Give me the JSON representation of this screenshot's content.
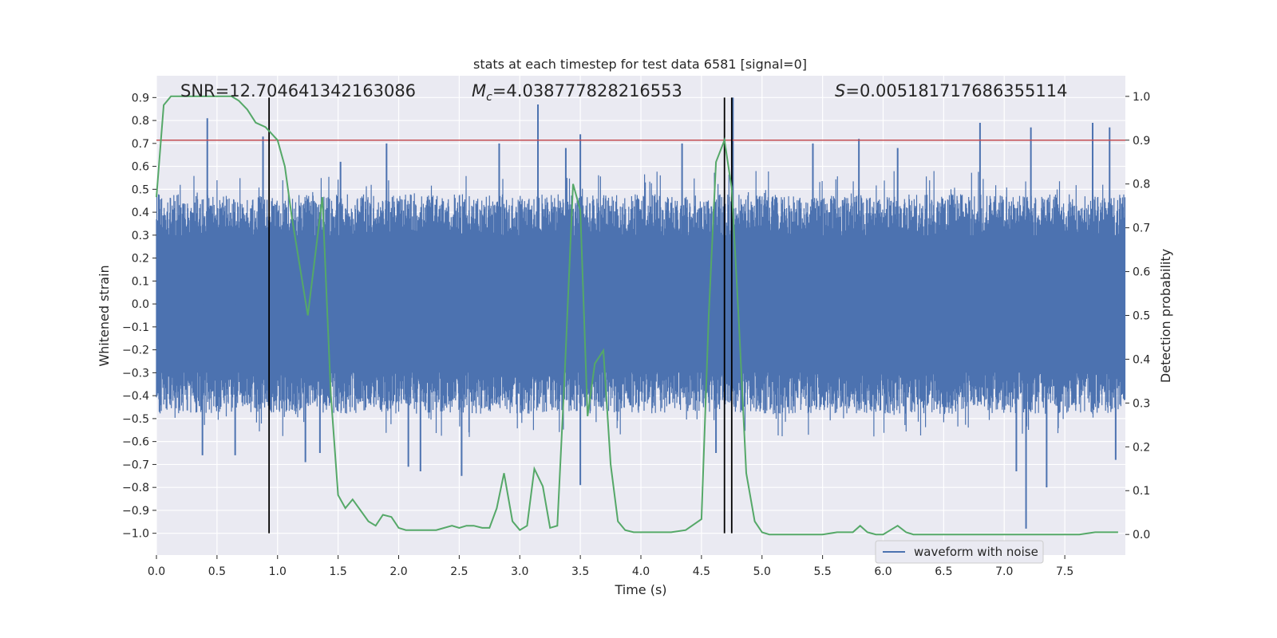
{
  "chart_data": {
    "type": "line",
    "title": "stats at each timestep for test data 6581 [signal=0]",
    "xlabel": "Time (s)",
    "ylabel_left": "Whitened strain",
    "ylabel_right": "Detection probability",
    "xlim": [
      0.0,
      8.0
    ],
    "ylim_left": [
      -1.095,
      0.995
    ],
    "ylim_right": [
      -0.047,
      1.047
    ],
    "x_ticks": [
      0.0,
      0.5,
      1.0,
      1.5,
      2.0,
      2.5,
      3.0,
      3.5,
      4.0,
      4.5,
      5.0,
      5.5,
      6.0,
      6.5,
      7.0,
      7.5
    ],
    "x_tick_labels": [
      "0.0",
      "0.5",
      "1.0",
      "1.5",
      "2.0",
      "2.5",
      "3.0",
      "3.5",
      "4.0",
      "4.5",
      "5.0",
      "5.5",
      "6.0",
      "6.5",
      "7.0",
      "7.5"
    ],
    "y_left_ticks": [
      0.9,
      0.8,
      0.7,
      0.6,
      0.5,
      0.4,
      0.3,
      0.2,
      0.1,
      0.0,
      -0.1,
      -0.2,
      -0.3,
      -0.4,
      -0.5,
      -0.6,
      -0.7,
      -0.8,
      -0.9,
      -1.0
    ],
    "y_left_tick_labels": [
      "0.9",
      "0.8",
      "0.7",
      "0.6",
      "0.5",
      "0.4",
      "0.3",
      "0.2",
      "0.1",
      "0.0",
      "−0.1",
      "−0.2",
      "−0.3",
      "−0.4",
      "−0.5",
      "−0.6",
      "−0.7",
      "−0.8",
      "−0.9",
      "−1.0"
    ],
    "y_right_ticks": [
      1.0,
      0.9,
      0.8,
      0.7,
      0.6,
      0.5,
      0.4,
      0.3,
      0.2,
      0.1,
      0.0
    ],
    "y_right_tick_labels": [
      "1.0",
      "0.9",
      "0.8",
      "0.7",
      "0.6",
      "0.5",
      "0.4",
      "0.3",
      "0.2",
      "0.1",
      "0.0"
    ],
    "grid": true,
    "legend": {
      "position": "lower-right",
      "entries": [
        "waveform with noise"
      ]
    },
    "annotations": {
      "snr": "SNR=12.704641342163086",
      "mc_symbol": "M",
      "mc_subscript": "c",
      "mc_value": "=4.038777828216553",
      "s_symbol": "S",
      "s_value": "=0.005181717686355114"
    },
    "threshold": {
      "axis": "right",
      "y": 0.9,
      "color": "#c44e52"
    },
    "vertical_markers": {
      "x": [
        0.93,
        4.69,
        4.75
      ],
      "y_range_left": [
        -1.0,
        0.9
      ],
      "color": "#000000"
    },
    "waveform": {
      "name": "waveform with noise",
      "axis": "left",
      "color": "#4c72b0",
      "typical_range": [
        -0.33,
        0.33
      ],
      "spikes": [
        {
          "x": 0.42,
          "y": 0.81
        },
        {
          "x": 0.88,
          "y": 0.73
        },
        {
          "x": 1.52,
          "y": 0.62
        },
        {
          "x": 1.9,
          "y": 0.7
        },
        {
          "x": 2.83,
          "y": 0.7
        },
        {
          "x": 3.15,
          "y": 0.87
        },
        {
          "x": 3.5,
          "y": 0.74
        },
        {
          "x": 3.38,
          "y": 0.68
        },
        {
          "x": 4.34,
          "y": 0.7
        },
        {
          "x": 4.76,
          "y": 0.9
        },
        {
          "x": 5.42,
          "y": 0.7
        },
        {
          "x": 5.8,
          "y": 0.72
        },
        {
          "x": 6.12,
          "y": 0.68
        },
        {
          "x": 6.8,
          "y": 0.79
        },
        {
          "x": 7.22,
          "y": 0.77
        },
        {
          "x": 7.73,
          "y": 0.79
        },
        {
          "x": 7.87,
          "y": 0.77
        },
        {
          "x": 0.38,
          "y": -0.66
        },
        {
          "x": 0.65,
          "y": -0.66
        },
        {
          "x": 1.23,
          "y": -0.69
        },
        {
          "x": 1.35,
          "y": -0.65
        },
        {
          "x": 2.08,
          "y": -0.71
        },
        {
          "x": 2.18,
          "y": -0.73
        },
        {
          "x": 2.52,
          "y": -0.75
        },
        {
          "x": 3.5,
          "y": -0.79
        },
        {
          "x": 4.62,
          "y": -0.65
        },
        {
          "x": 7.1,
          "y": -0.73
        },
        {
          "x": 7.18,
          "y": -0.98
        },
        {
          "x": 7.35,
          "y": -0.8
        },
        {
          "x": 7.92,
          "y": -0.68
        }
      ]
    },
    "detection_probability": {
      "axis": "right",
      "color": "#55a868",
      "x": [
        0.0,
        0.06,
        0.12,
        0.25,
        0.5,
        0.62,
        0.68,
        0.75,
        0.82,
        0.9,
        1.0,
        1.06,
        1.12,
        1.25,
        1.37,
        1.44,
        1.5,
        1.56,
        1.62,
        1.75,
        1.81,
        1.87,
        1.94,
        2.0,
        2.06,
        2.19,
        2.31,
        2.44,
        2.5,
        2.56,
        2.62,
        2.69,
        2.75,
        2.81,
        2.87,
        2.94,
        3.0,
        3.06,
        3.12,
        3.19,
        3.25,
        3.31,
        3.37,
        3.44,
        3.5,
        3.56,
        3.62,
        3.69,
        3.75,
        3.81,
        3.87,
        3.94,
        4.0,
        4.12,
        4.25,
        4.37,
        4.5,
        4.56,
        4.62,
        4.69,
        4.75,
        4.81,
        4.87,
        4.94,
        5.0,
        5.06,
        5.12,
        5.25,
        5.5,
        5.62,
        5.75,
        5.81,
        5.87,
        5.94,
        6.0,
        6.06,
        6.12,
        6.19,
        6.25,
        6.5,
        6.75,
        7.0,
        7.25,
        7.5,
        7.62,
        7.75,
        7.81,
        7.94
      ],
      "y": [
        0.77,
        0.98,
        1.0,
        1.0,
        1.0,
        1.0,
        0.99,
        0.97,
        0.94,
        0.93,
        0.9,
        0.84,
        0.72,
        0.5,
        0.77,
        0.32,
        0.09,
        0.06,
        0.08,
        0.03,
        0.02,
        0.045,
        0.04,
        0.015,
        0.01,
        0.01,
        0.01,
        0.02,
        0.015,
        0.02,
        0.02,
        0.015,
        0.015,
        0.06,
        0.14,
        0.03,
        0.01,
        0.02,
        0.15,
        0.11,
        0.015,
        0.02,
        0.36,
        0.8,
        0.74,
        0.27,
        0.39,
        0.42,
        0.16,
        0.03,
        0.01,
        0.005,
        0.005,
        0.005,
        0.005,
        0.01,
        0.035,
        0.5,
        0.85,
        0.9,
        0.79,
        0.48,
        0.14,
        0.03,
        0.005,
        0.0,
        0.0,
        0.0,
        0.0,
        0.005,
        0.005,
        0.02,
        0.005,
        0.0,
        0.0,
        0.01,
        0.02,
        0.005,
        0.0,
        0.0,
        0.0,
        0.0,
        0.0,
        0.0,
        0.0,
        0.005,
        0.005,
        0.005
      ]
    }
  }
}
